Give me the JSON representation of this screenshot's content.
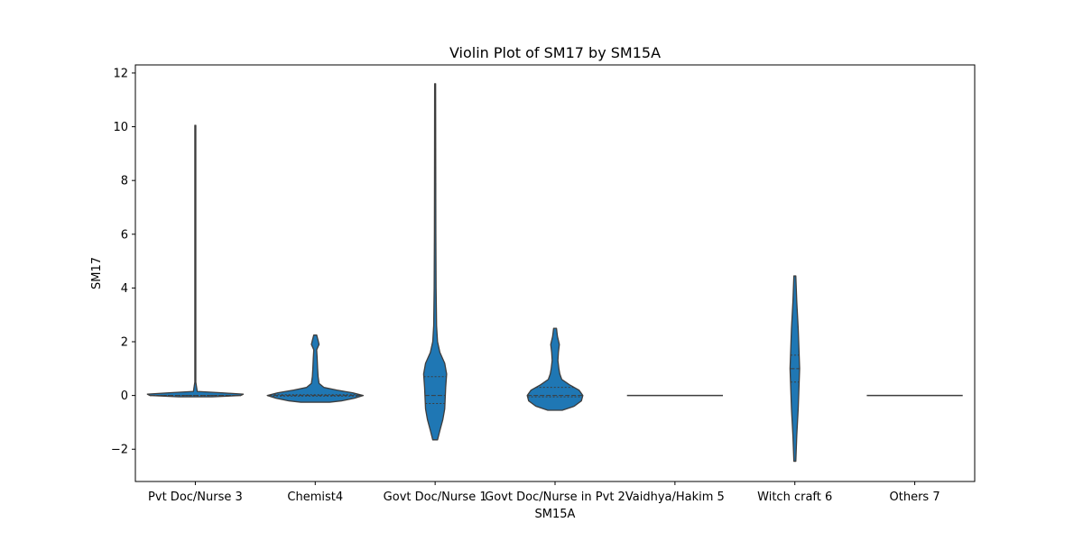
{
  "chart_data": {
    "type": "violin",
    "title": "Violin Plot of SM17 by SM15A",
    "xlabel": "SM15A",
    "ylabel": "SM17",
    "ylim": [
      -3.2,
      12.3
    ],
    "yticks": [
      -2,
      0,
      2,
      4,
      6,
      8,
      10,
      12
    ],
    "grid": false,
    "color": "#1f77b4",
    "categories": [
      "Pvt Doc/Nurse 3",
      "Chemist4",
      "Govt Doc/Nurse 1",
      "Govt Doc/Nurse in Pvt 2",
      "Vaidhya/Hakim 5",
      "Witch craft 6",
      "Others 7"
    ],
    "violins": [
      {
        "category": "Pvt Doc/Nurse 3",
        "min": -0.05,
        "max": 10.05,
        "median": 0,
        "q1": 0,
        "q3": 0,
        "profile": [
          [
            -0.05,
            0.35
          ],
          [
            0.0,
            0.95
          ],
          [
            0.05,
            1.0
          ],
          [
            0.1,
            0.55
          ],
          [
            0.15,
            0.04
          ],
          [
            0.5,
            0.01
          ],
          [
            10.05,
            0.01
          ]
        ]
      },
      {
        "category": "Chemist4",
        "min": -0.25,
        "max": 2.25,
        "median": 0,
        "q1": -0.02,
        "q3": 0.03,
        "profile": [
          [
            -0.25,
            0.3
          ],
          [
            -0.2,
            0.55
          ],
          [
            -0.1,
            0.82
          ],
          [
            0.0,
            1.0
          ],
          [
            0.1,
            0.78
          ],
          [
            0.2,
            0.45
          ],
          [
            0.3,
            0.18
          ],
          [
            0.45,
            0.08
          ],
          [
            0.7,
            0.06
          ],
          [
            1.0,
            0.05
          ],
          [
            1.4,
            0.04
          ],
          [
            1.7,
            0.03
          ],
          [
            1.9,
            0.08
          ],
          [
            2.05,
            0.06
          ],
          [
            2.25,
            0.03
          ]
        ]
      },
      {
        "category": "Govt Doc/Nurse 1",
        "min": -1.65,
        "max": 11.6,
        "median": 0,
        "q1": -0.3,
        "q3": 0.7,
        "profile": [
          [
            -1.65,
            0.05
          ],
          [
            -1.3,
            0.1
          ],
          [
            -0.9,
            0.16
          ],
          [
            -0.5,
            0.2
          ],
          [
            -0.1,
            0.21
          ],
          [
            0.3,
            0.22
          ],
          [
            0.8,
            0.24
          ],
          [
            1.2,
            0.2
          ],
          [
            1.6,
            0.1
          ],
          [
            2.0,
            0.05
          ],
          [
            2.6,
            0.03
          ],
          [
            4.0,
            0.02
          ],
          [
            6.0,
            0.015
          ],
          [
            9.0,
            0.012
          ],
          [
            11.6,
            0.01
          ]
        ]
      },
      {
        "category": "Govt Doc/Nurse in Pvt 2",
        "min": -0.55,
        "max": 2.5,
        "median": 0,
        "q1": -0.05,
        "q3": 0.3,
        "profile": [
          [
            -0.55,
            0.15
          ],
          [
            -0.4,
            0.4
          ],
          [
            -0.2,
            0.55
          ],
          [
            0.0,
            0.58
          ],
          [
            0.2,
            0.5
          ],
          [
            0.4,
            0.3
          ],
          [
            0.6,
            0.14
          ],
          [
            0.8,
            0.1
          ],
          [
            1.0,
            0.08
          ],
          [
            1.3,
            0.06
          ],
          [
            1.6,
            0.07
          ],
          [
            1.9,
            0.09
          ],
          [
            2.2,
            0.05
          ],
          [
            2.5,
            0.03
          ]
        ]
      },
      {
        "category": "Vaidhya/Hakim 5",
        "min": 0,
        "max": 0,
        "median": 0,
        "q1": 0,
        "q3": 0,
        "profile": []
      },
      {
        "category": "Witch craft 6",
        "min": -2.45,
        "max": 4.45,
        "median": 1.0,
        "q1": 0.5,
        "q3": 1.5,
        "profile": [
          [
            -2.45,
            0.02
          ],
          [
            -1.5,
            0.04
          ],
          [
            -0.5,
            0.07
          ],
          [
            0.5,
            0.09
          ],
          [
            1.0,
            0.1
          ],
          [
            1.5,
            0.09
          ],
          [
            2.5,
            0.07
          ],
          [
            3.5,
            0.04
          ],
          [
            4.45,
            0.02
          ]
        ]
      },
      {
        "category": "Others 7",
        "min": 0,
        "max": 0,
        "median": 0,
        "q1": 0,
        "q3": 0,
        "profile": []
      }
    ]
  }
}
